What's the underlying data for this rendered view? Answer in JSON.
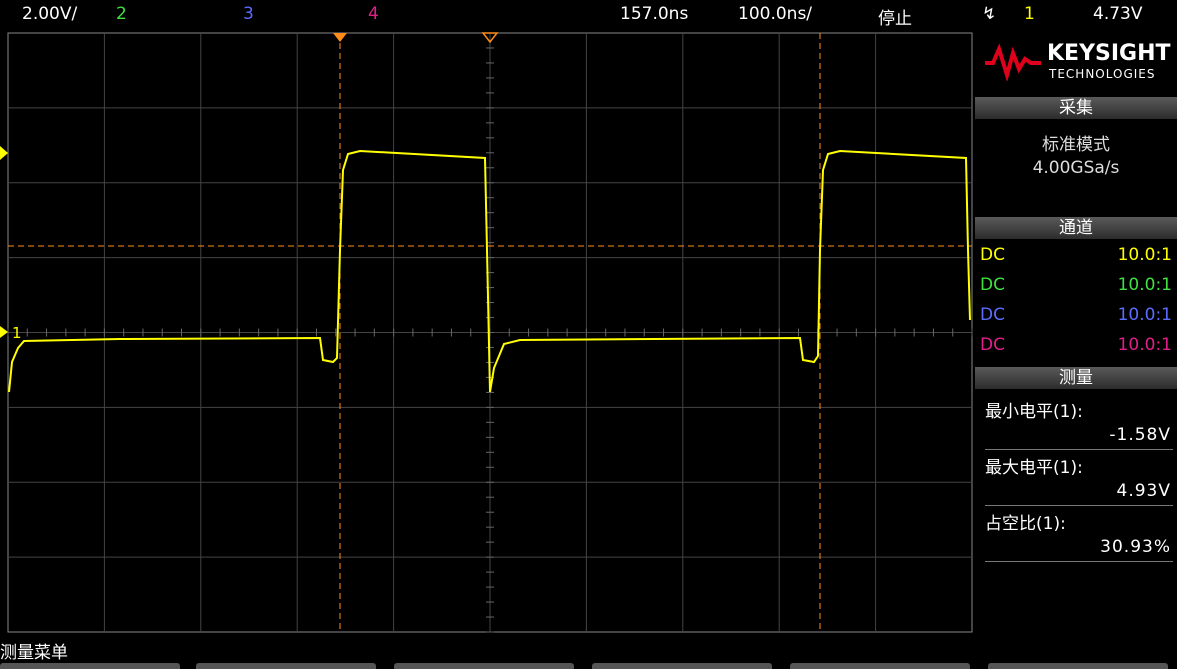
{
  "top_bar": {
    "scale": "2.00V/",
    "ch2": "2",
    "ch3": "3",
    "ch4": "4",
    "delay": "157.0ns",
    "timebase": "100.0ns/",
    "status": "停止",
    "trigger_channel": "1",
    "trigger_level": "4.73V"
  },
  "logo": {
    "brand": "KEYSIGHT",
    "sub": "TECHNOLOGIES"
  },
  "acquisition": {
    "title": "采集",
    "mode": "标准模式",
    "rate": "4.00GSa/s"
  },
  "channels": {
    "title": "通道",
    "rows": [
      [
        "DC",
        "10.0:1"
      ],
      [
        "DC",
        "10.0:1"
      ],
      [
        "DC",
        "10.0:1"
      ],
      [
        "DC",
        "10.0:1"
      ]
    ]
  },
  "measurements": {
    "title": "测量",
    "items": [
      {
        "label": "最小电平(1):",
        "value": "-1.58V"
      },
      {
        "label": "最大电平(1):",
        "value": "4.93V"
      },
      {
        "label": "占空比(1):",
        "value": "30.93%"
      }
    ]
  },
  "ground_marker": "1",
  "softkey_menu": "测量菜单"
}
